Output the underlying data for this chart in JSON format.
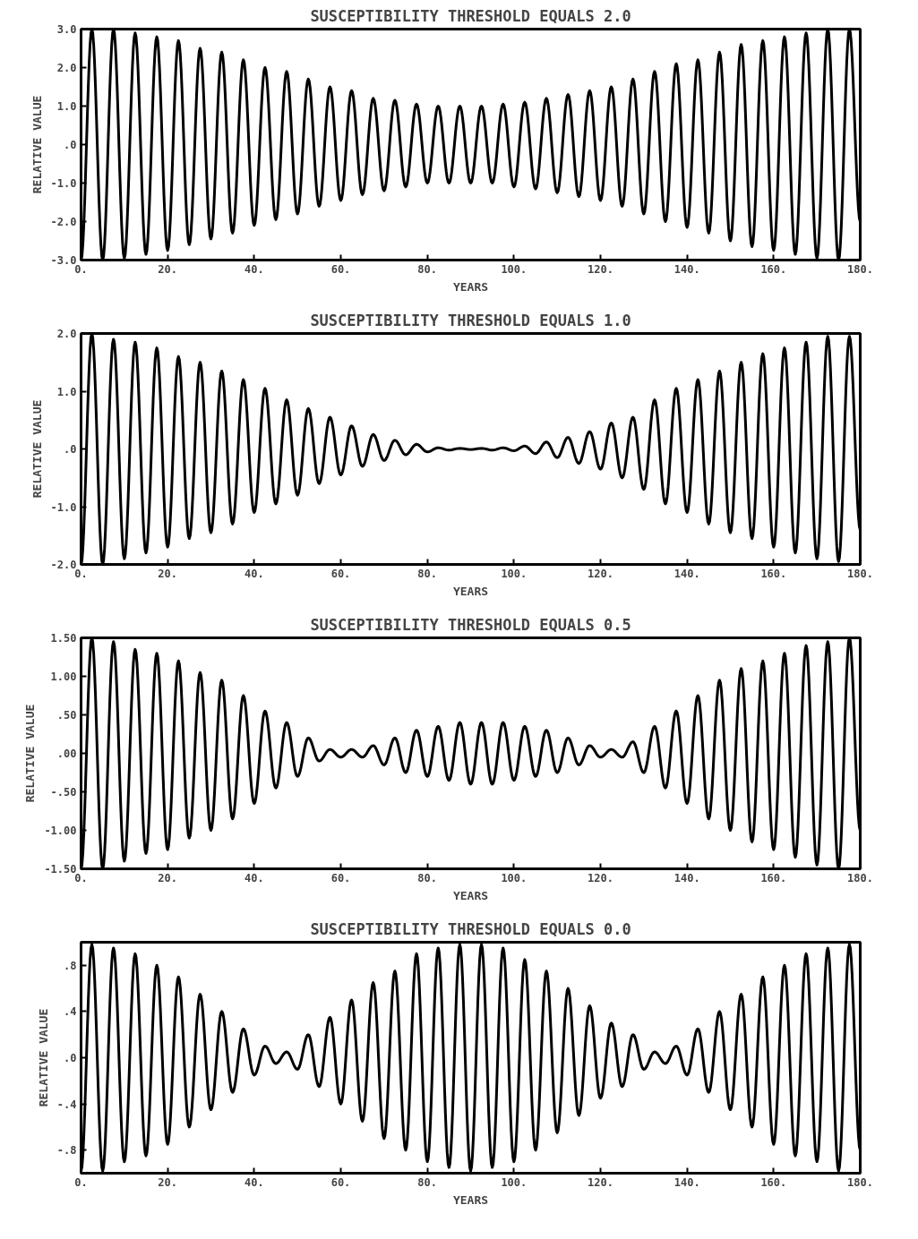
{
  "chart_data": [
    {
      "type": "line",
      "title": "SUSCEPTIBILITY THRESHOLD EQUALS 2.0",
      "xlabel": "YEARS",
      "ylabel": "RELATIVE VALUE",
      "x": [
        0,
        2.5,
        5,
        7.5,
        10,
        12.5,
        15,
        17.5,
        20,
        22.5,
        25,
        27.5,
        30,
        32.5,
        35,
        37.5,
        40,
        42.5,
        45,
        47.5,
        50,
        52.5,
        55,
        57.5,
        60,
        62.5,
        65,
        67.5,
        70,
        72.5,
        75,
        77.5,
        80,
        82.5,
        85,
        87.5,
        90,
        92.5,
        95,
        97.5,
        100,
        102.5,
        105,
        107.5,
        110,
        112.5,
        115,
        117.5,
        120,
        122.5,
        125,
        127.5,
        130,
        132.5,
        135,
        137.5,
        140,
        142.5,
        145,
        147.5,
        150,
        152.5,
        155,
        157.5,
        160,
        162.5,
        165,
        167.5,
        170,
        172.5,
        175,
        177.5,
        180
      ],
      "series": [
        {
          "color": "#000000",
          "values": [
            -3.0,
            3.0,
            -3.0,
            3.0,
            -2.95,
            2.9,
            -2.85,
            2.8,
            -2.75,
            2.7,
            -2.6,
            2.5,
            -2.45,
            2.4,
            -2.3,
            2.2,
            -2.1,
            2.0,
            -1.95,
            1.9,
            -1.8,
            1.7,
            -1.6,
            1.5,
            -1.45,
            1.4,
            -1.3,
            1.2,
            -1.2,
            1.15,
            -1.1,
            1.05,
            -1.0,
            1.0,
            -1.0,
            1.0,
            -1.0,
            1.0,
            -1.0,
            1.05,
            -1.1,
            1.1,
            -1.15,
            1.2,
            -1.25,
            1.3,
            -1.35,
            1.4,
            -1.45,
            1.5,
            -1.6,
            1.7,
            -1.8,
            1.9,
            -2.0,
            2.1,
            -2.15,
            2.2,
            -2.3,
            2.4,
            -2.5,
            2.6,
            -2.65,
            2.7,
            -2.75,
            2.8,
            -2.85,
            2.9,
            -2.95,
            3.0,
            -3.0,
            3.0,
            -2.0
          ]
        }
      ],
      "xlim": [
        0,
        180
      ],
      "xticks": [
        {
          "value": 0,
          "label": "0."
        },
        {
          "value": 20,
          "label": "20."
        },
        {
          "value": 40,
          "label": "40."
        },
        {
          "value": 60,
          "label": "60."
        },
        {
          "value": 80,
          "label": "80."
        },
        {
          "value": 100,
          "label": "100."
        },
        {
          "value": 120,
          "label": "120."
        },
        {
          "value": 140,
          "label": "140."
        },
        {
          "value": 160,
          "label": "160."
        },
        {
          "value": 180,
          "label": "180."
        }
      ],
      "ylim": [
        -3,
        3
      ],
      "yticks": [
        {
          "value": 3,
          "label": "3.0"
        },
        {
          "value": 2,
          "label": "2.0"
        },
        {
          "value": 1,
          "label": "1.0"
        },
        {
          "value": 0,
          "label": ".0"
        },
        {
          "value": -1,
          "label": "-1.0"
        },
        {
          "value": -2,
          "label": "-2.0"
        },
        {
          "value": -3,
          "label": "-3.0"
        }
      ]
    },
    {
      "type": "line",
      "title": "SUSCEPTIBILITY THRESHOLD EQUALS 1.0",
      "xlabel": "YEARS",
      "ylabel": "RELATIVE VALUE",
      "x": [
        0,
        2.5,
        5,
        7.5,
        10,
        12.5,
        15,
        17.5,
        20,
        22.5,
        25,
        27.5,
        30,
        32.5,
        35,
        37.5,
        40,
        42.5,
        45,
        47.5,
        50,
        52.5,
        55,
        57.5,
        60,
        62.5,
        65,
        67.5,
        70,
        72.5,
        75,
        77.5,
        80,
        82.5,
        85,
        87.5,
        90,
        92.5,
        95,
        97.5,
        100,
        102.5,
        105,
        107.5,
        110,
        112.5,
        115,
        117.5,
        120,
        122.5,
        125,
        127.5,
        130,
        132.5,
        135,
        137.5,
        140,
        142.5,
        145,
        147.5,
        150,
        152.5,
        155,
        157.5,
        160,
        162.5,
        165,
        167.5,
        170,
        172.5,
        175,
        177.5,
        180
      ],
      "series": [
        {
          "color": "#000000",
          "values": [
            -2.0,
            2.0,
            -2.0,
            1.9,
            -1.9,
            1.85,
            -1.8,
            1.75,
            -1.7,
            1.6,
            -1.55,
            1.5,
            -1.45,
            1.35,
            -1.3,
            1.2,
            -1.1,
            1.05,
            -0.95,
            0.85,
            -0.8,
            0.7,
            -0.6,
            0.55,
            -0.45,
            0.4,
            -0.3,
            0.25,
            -0.2,
            0.15,
            -0.1,
            0.08,
            -0.05,
            0.02,
            -0.02,
            0.01,
            -0.01,
            0.01,
            -0.02,
            0.02,
            -0.03,
            0.05,
            -0.08,
            0.12,
            -0.15,
            0.2,
            -0.25,
            0.3,
            -0.35,
            0.45,
            -0.5,
            0.55,
            -0.7,
            0.85,
            -0.95,
            1.05,
            -1.1,
            1.2,
            -1.3,
            1.35,
            -1.45,
            1.5,
            -1.55,
            1.65,
            -1.7,
            1.75,
            -1.8,
            1.85,
            -1.9,
            1.95,
            -1.95,
            1.95,
            -1.4
          ]
        }
      ],
      "xlim": [
        0,
        180
      ],
      "xticks": [
        {
          "value": 0,
          "label": "0."
        },
        {
          "value": 20,
          "label": "20."
        },
        {
          "value": 40,
          "label": "40."
        },
        {
          "value": 60,
          "label": "60."
        },
        {
          "value": 80,
          "label": "80."
        },
        {
          "value": 100,
          "label": "100."
        },
        {
          "value": 120,
          "label": "120."
        },
        {
          "value": 140,
          "label": "140."
        },
        {
          "value": 160,
          "label": "160."
        },
        {
          "value": 180,
          "label": "180."
        }
      ],
      "ylim": [
        -2,
        2
      ],
      "yticks": [
        {
          "value": 2,
          "label": "2.0"
        },
        {
          "value": 1,
          "label": "1.0"
        },
        {
          "value": 0,
          "label": ".0"
        },
        {
          "value": -1,
          "label": "-1.0"
        },
        {
          "value": -2,
          "label": "-2.0"
        }
      ]
    },
    {
      "type": "line",
      "title": "SUSCEPTIBILITY THRESHOLD EQUALS 0.5",
      "xlabel": "YEARS",
      "ylabel": "RELATIVE VALUE",
      "x": [
        0,
        2.5,
        5,
        7.5,
        10,
        12.5,
        15,
        17.5,
        20,
        22.5,
        25,
        27.5,
        30,
        32.5,
        35,
        37.5,
        40,
        42.5,
        45,
        47.5,
        50,
        52.5,
        55,
        57.5,
        60,
        62.5,
        65,
        67.5,
        70,
        72.5,
        75,
        77.5,
        80,
        82.5,
        85,
        87.5,
        90,
        92.5,
        95,
        97.5,
        100,
        102.5,
        105,
        107.5,
        110,
        112.5,
        115,
        117.5,
        120,
        122.5,
        125,
        127.5,
        130,
        132.5,
        135,
        137.5,
        140,
        142.5,
        145,
        147.5,
        150,
        152.5,
        155,
        157.5,
        160,
        162.5,
        165,
        167.5,
        170,
        172.5,
        175,
        177.5,
        180
      ],
      "series": [
        {
          "color": "#000000",
          "values": [
            -1.5,
            1.5,
            -1.5,
            1.45,
            -1.4,
            1.35,
            -1.3,
            1.3,
            -1.25,
            1.2,
            -1.1,
            1.05,
            -1.0,
            0.95,
            -0.85,
            0.75,
            -0.65,
            0.55,
            -0.45,
            0.4,
            -0.3,
            0.2,
            -0.1,
            0.05,
            -0.05,
            0.05,
            -0.05,
            0.1,
            -0.15,
            0.2,
            -0.25,
            0.3,
            -0.3,
            0.35,
            -0.35,
            0.4,
            -0.4,
            0.4,
            -0.4,
            0.4,
            -0.35,
            0.35,
            -0.3,
            0.3,
            -0.25,
            0.2,
            -0.15,
            0.1,
            -0.05,
            0.05,
            -0.05,
            0.15,
            -0.25,
            0.35,
            -0.45,
            0.55,
            -0.65,
            0.75,
            -0.85,
            0.95,
            -1.0,
            1.1,
            -1.15,
            1.2,
            -1.25,
            1.3,
            -1.35,
            1.4,
            -1.45,
            1.45,
            -1.5,
            1.5,
            -1.0
          ]
        }
      ],
      "xlim": [
        0,
        180
      ],
      "xticks": [
        {
          "value": 0,
          "label": "0."
        },
        {
          "value": 20,
          "label": "20."
        },
        {
          "value": 40,
          "label": "40."
        },
        {
          "value": 60,
          "label": "60."
        },
        {
          "value": 80,
          "label": "80."
        },
        {
          "value": 100,
          "label": "100."
        },
        {
          "value": 120,
          "label": "120."
        },
        {
          "value": 140,
          "label": "140."
        },
        {
          "value": 160,
          "label": "160."
        },
        {
          "value": 180,
          "label": "180."
        }
      ],
      "ylim": [
        -1.5,
        1.5
      ],
      "yticks": [
        {
          "value": 1.5,
          "label": "1.50"
        },
        {
          "value": 1,
          "label": "1.00"
        },
        {
          "value": 0.5,
          "label": ".50"
        },
        {
          "value": 0,
          "label": ".00"
        },
        {
          "value": -0.5,
          "label": "-.50"
        },
        {
          "value": -1,
          "label": "-1.00"
        },
        {
          "value": -1.5,
          "label": "-1.50"
        }
      ]
    },
    {
      "type": "line",
      "title": "SUSCEPTIBILITY THRESHOLD EQUALS 0.0",
      "xlabel": "YEARS",
      "ylabel": "RELATIVE VALUE",
      "x": [
        0,
        2.5,
        5,
        7.5,
        10,
        12.5,
        15,
        17.5,
        20,
        22.5,
        25,
        27.5,
        30,
        32.5,
        35,
        37.5,
        40,
        42.5,
        45,
        47.5,
        50,
        52.5,
        55,
        57.5,
        60,
        62.5,
        65,
        67.5,
        70,
        72.5,
        75,
        77.5,
        80,
        82.5,
        85,
        87.5,
        90,
        92.5,
        95,
        97.5,
        100,
        102.5,
        105,
        107.5,
        110,
        112.5,
        115,
        117.5,
        120,
        122.5,
        125,
        127.5,
        130,
        132.5,
        135,
        137.5,
        140,
        142.5,
        145,
        147.5,
        150,
        152.5,
        155,
        157.5,
        160,
        162.5,
        165,
        167.5,
        170,
        172.5,
        175,
        177.5,
        180
      ],
      "series": [
        {
          "color": "#000000",
          "values": [
            -0.98,
            0.98,
            -0.98,
            0.95,
            -0.9,
            0.9,
            -0.85,
            0.8,
            -0.75,
            0.7,
            -0.6,
            0.55,
            -0.45,
            0.4,
            -0.3,
            0.25,
            -0.15,
            0.1,
            -0.05,
            0.05,
            -0.1,
            0.2,
            -0.25,
            0.35,
            -0.4,
            0.5,
            -0.55,
            0.65,
            -0.7,
            0.75,
            -0.8,
            0.9,
            -0.9,
            0.95,
            -0.95,
            0.98,
            -0.98,
            0.98,
            -0.95,
            0.95,
            -0.9,
            0.85,
            -0.8,
            0.75,
            -0.65,
            0.6,
            -0.5,
            0.45,
            -0.35,
            0.3,
            -0.25,
            0.2,
            -0.1,
            0.05,
            -0.05,
            0.1,
            -0.15,
            0.25,
            -0.3,
            0.4,
            -0.45,
            0.55,
            -0.6,
            0.7,
            -0.75,
            0.8,
            -0.85,
            0.9,
            -0.9,
            0.95,
            -0.98,
            0.98,
            -0.8
          ]
        }
      ],
      "xlim": [
        0,
        180
      ],
      "xticks": [
        {
          "value": 0,
          "label": "0."
        },
        {
          "value": 20,
          "label": "20."
        },
        {
          "value": 40,
          "label": "40."
        },
        {
          "value": 60,
          "label": "60."
        },
        {
          "value": 80,
          "label": "80."
        },
        {
          "value": 100,
          "label": "100."
        },
        {
          "value": 120,
          "label": "120."
        },
        {
          "value": 140,
          "label": "140."
        },
        {
          "value": 160,
          "label": "160."
        },
        {
          "value": 180,
          "label": "180."
        }
      ],
      "ylim": [
        -1,
        1
      ],
      "yticks": [
        {
          "value": 0.8,
          "label": ".8"
        },
        {
          "value": 0.4,
          "label": ".4"
        },
        {
          "value": 0,
          "label": ".0"
        },
        {
          "value": -0.4,
          "label": "-.4"
        },
        {
          "value": -0.8,
          "label": "-.8"
        }
      ]
    }
  ]
}
